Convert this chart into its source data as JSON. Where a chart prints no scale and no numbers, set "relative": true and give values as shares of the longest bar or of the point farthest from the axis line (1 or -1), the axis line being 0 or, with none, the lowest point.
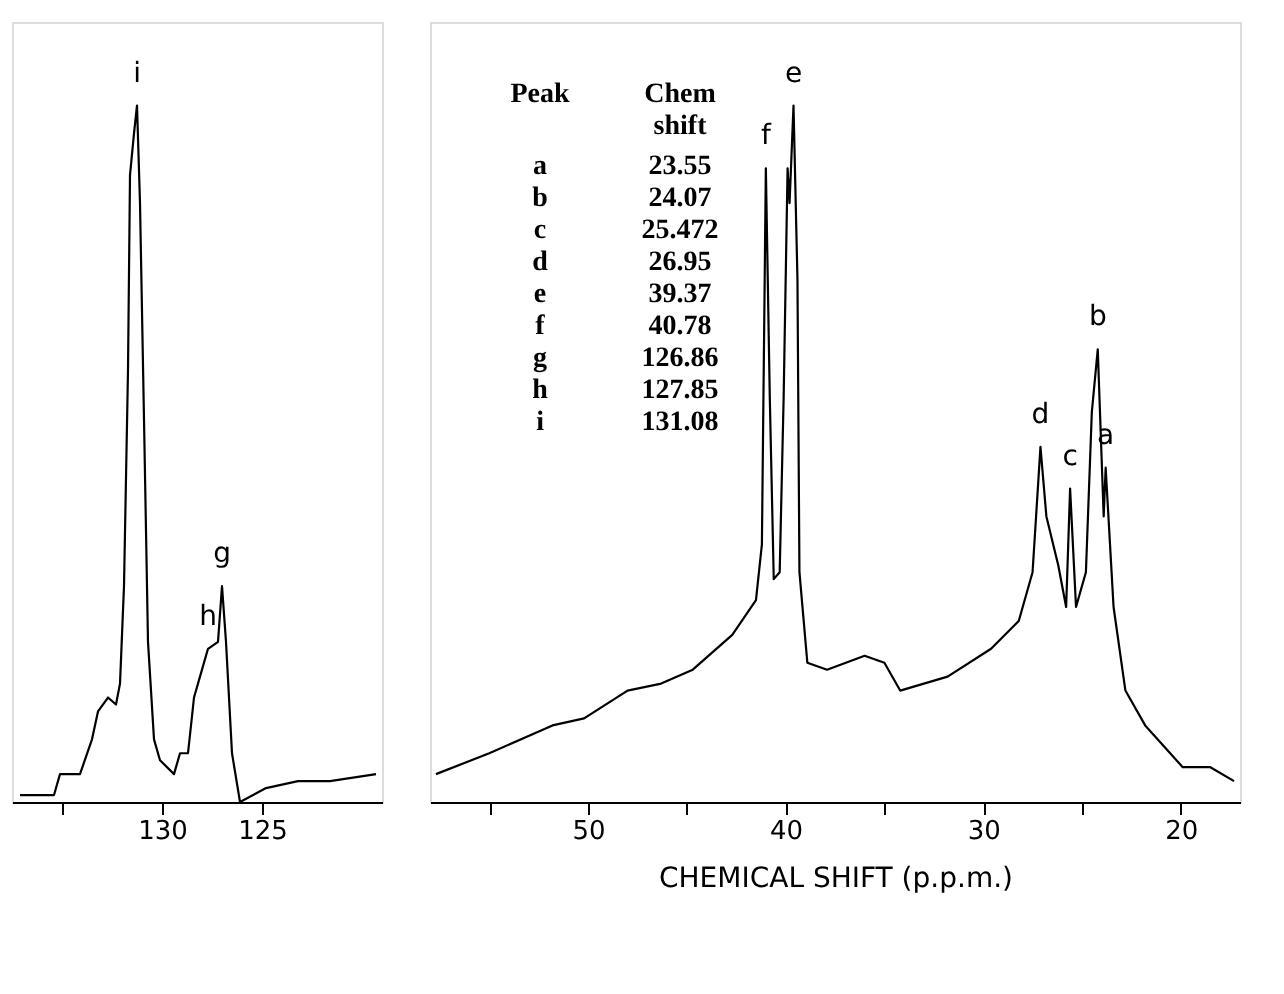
{
  "chart_data": [
    {
      "type": "line",
      "relative": true,
      "tick_labels": "x",
      "marker": "none",
      "line_style": "solid",
      "xlim": [
        137.5,
        119
      ],
      "xticks": [
        {
          "value": 135,
          "label": null
        },
        130,
        125
      ],
      "series": [
        {
          "color": "#000000",
          "x": [
            137.1,
            135.4,
            135.1,
            134.1,
            133.5,
            133.2,
            132.7,
            132.3,
            132.1,
            131.9,
            131.7,
            131.6,
            131.4,
            131.25,
            131.1,
            130.9,
            130.7,
            130.4,
            130.1,
            129.4,
            129.1,
            128.7,
            128.4,
            128.0,
            127.7,
            127.2,
            127.0,
            126.8,
            126.5,
            126.1,
            124.8,
            123.2,
            121.6,
            119.3
          ],
          "values": [
            0.01,
            0.01,
            0.04,
            0.04,
            0.09,
            0.13,
            0.15,
            0.14,
            0.17,
            0.31,
            0.62,
            0.9,
            0.96,
            1.0,
            0.86,
            0.55,
            0.23,
            0.09,
            0.06,
            0.04,
            0.07,
            0.07,
            0.15,
            0.19,
            0.22,
            0.23,
            0.31,
            0.23,
            0.07,
            0.0,
            0.02,
            0.03,
            0.03,
            0.04
          ]
        }
      ],
      "annotations": [
        {
          "text": "i",
          "x": 131.25,
          "y": 1.0
        },
        {
          "text": "h",
          "x": 127.7,
          "y": 0.22
        },
        {
          "text": "g",
          "x": 127.0,
          "y": 0.31
        }
      ]
    },
    {
      "type": "line",
      "relative": true,
      "tick_labels": "x",
      "marker": "none",
      "line_style": "solid",
      "xlim": [
        58,
        17
      ],
      "xticks": [
        {
          "value": 55,
          "label": null
        },
        50,
        {
          "value": 45,
          "label": null
        },
        40,
        {
          "value": 35,
          "label": null
        },
        30,
        {
          "value": 25,
          "label": null
        },
        20
      ],
      "xlabel": "CHEMICAL SHIFT (p.p.m.)",
      "series": [
        {
          "color": "#000000",
          "x": [
            57.7,
            55.0,
            51.8,
            50.2,
            48.0,
            46.3,
            44.7,
            42.7,
            41.5,
            41.2,
            41.0,
            40.8,
            40.6,
            40.3,
            40.1,
            39.9,
            39.8,
            39.6,
            39.4,
            39.3,
            38.9,
            37.9,
            36.0,
            35.0,
            34.2,
            31.8,
            29.6,
            28.2,
            27.5,
            27.1,
            26.8,
            26.2,
            25.8,
            25.6,
            25.3,
            24.8,
            24.5,
            24.2,
            23.9,
            23.8,
            23.4,
            22.8,
            21.8,
            19.9,
            18.5,
            17.3
          ],
          "values": [
            0.04,
            0.07,
            0.11,
            0.12,
            0.16,
            0.17,
            0.19,
            0.24,
            0.29,
            0.37,
            0.91,
            0.58,
            0.32,
            0.33,
            0.58,
            0.91,
            0.86,
            1.0,
            0.75,
            0.33,
            0.2,
            0.19,
            0.21,
            0.2,
            0.16,
            0.18,
            0.22,
            0.26,
            0.33,
            0.51,
            0.41,
            0.34,
            0.28,
            0.45,
            0.28,
            0.33,
            0.56,
            0.65,
            0.41,
            0.48,
            0.28,
            0.16,
            0.11,
            0.05,
            0.05,
            0.03
          ]
        }
      ],
      "annotations": [
        {
          "text": "f",
          "x": 41.0,
          "y": 0.91
        },
        {
          "text": "e",
          "x": 39.6,
          "y": 1.0
        },
        {
          "text": "d",
          "x": 27.1,
          "y": 0.51
        },
        {
          "text": "c",
          "x": 25.6,
          "y": 0.45
        },
        {
          "text": "b",
          "x": 24.2,
          "y": 0.65
        },
        {
          "text": "a",
          "x": 23.8,
          "y": 0.48
        },
        "Peak",
        "Chem shift",
        "a",
        "23.55",
        "b",
        "24.07",
        "c",
        "25.472",
        "d",
        "26.95",
        "e",
        "39.37",
        "f",
        "40.78",
        "g",
        "126.86",
        "h",
        "127.85",
        "i",
        "131.08"
      ]
    }
  ]
}
